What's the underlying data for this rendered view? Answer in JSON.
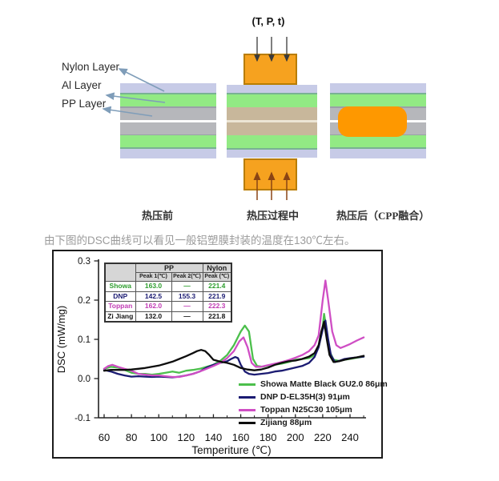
{
  "diagram": {
    "layer_labels": {
      "nylon": "Nylon Layer",
      "al": "Al Layer",
      "pp": "PP Layer"
    },
    "press_annotation": "(T, P, t)",
    "captions": {
      "before": "热压前",
      "during": "热压过程中",
      "after": "热压后（CPP融合）"
    },
    "colors": {
      "nylon_layer": "#c7cbe7",
      "al_layer": "#92ea84",
      "pp_layer": "#b6b7bb",
      "melted_pp": "#c8b79b",
      "press_block": "#f6a21f",
      "press_block_border": "#b97d00",
      "cpp_fusion_blob": "#fe9800",
      "label_arrow": "#7f9db9"
    }
  },
  "lead_text": "由下图的DSC曲线可以看见一般铝塑膜封装的温度在130℃左右。",
  "chart_data": {
    "type": "line",
    "title": "",
    "xlabel": "Temperiture (℃)",
    "ylabel": "DSC (mW/mg)",
    "xlim": [
      56,
      252
    ],
    "ylim": [
      -0.1,
      0.3
    ],
    "xticks": [
      60,
      80,
      100,
      120,
      140,
      160,
      180,
      200,
      220,
      240
    ],
    "yticks": [
      -0.1,
      0.0,
      0.1,
      0.2,
      0.3
    ],
    "grid": false,
    "legend_position": "lower right",
    "series": [
      {
        "name": "Showa Matte Black GU2.0 86μm",
        "color": "#4cbf4c",
        "points": [
          [
            60,
            0.025
          ],
          [
            65,
            0.03
          ],
          [
            70,
            0.028
          ],
          [
            75,
            0.022
          ],
          [
            80,
            0.015
          ],
          [
            85,
            0.012
          ],
          [
            90,
            0.012
          ],
          [
            95,
            0.01
          ],
          [
            100,
            0.012
          ],
          [
            105,
            0.015
          ],
          [
            110,
            0.018
          ],
          [
            115,
            0.015
          ],
          [
            120,
            0.02
          ],
          [
            125,
            0.022
          ],
          [
            130,
            0.025
          ],
          [
            135,
            0.03
          ],
          [
            140,
            0.035
          ],
          [
            145,
            0.045
          ],
          [
            150,
            0.06
          ],
          [
            155,
            0.085
          ],
          [
            160,
            0.12
          ],
          [
            163,
            0.135
          ],
          [
            166,
            0.12
          ],
          [
            169,
            0.05
          ],
          [
            172,
            0.032
          ],
          [
            176,
            0.03
          ],
          [
            180,
            0.033
          ],
          [
            185,
            0.035
          ],
          [
            190,
            0.038
          ],
          [
            195,
            0.042
          ],
          [
            200,
            0.048
          ],
          [
            205,
            0.05
          ],
          [
            210,
            0.052
          ],
          [
            214,
            0.06
          ],
          [
            217,
            0.08
          ],
          [
            220,
            0.13
          ],
          [
            221,
            0.165
          ],
          [
            223,
            0.12
          ],
          [
            225,
            0.07
          ],
          [
            228,
            0.048
          ],
          [
            232,
            0.045
          ],
          [
            236,
            0.048
          ],
          [
            240,
            0.05
          ],
          [
            245,
            0.053
          ],
          [
            250,
            0.056
          ]
        ]
      },
      {
        "name": "DNP D-EL35H(3) 91μm",
        "color": "#1b1b72",
        "points": [
          [
            60,
            0.022
          ],
          [
            65,
            0.018
          ],
          [
            70,
            0.012
          ],
          [
            75,
            0.008
          ],
          [
            80,
            0.005
          ],
          [
            85,
            0.006
          ],
          [
            90,
            0.005
          ],
          [
            95,
            0.004
          ],
          [
            100,
            0.005
          ],
          [
            105,
            0.004
          ],
          [
            110,
            0.003
          ],
          [
            115,
            0.005
          ],
          [
            120,
            0.008
          ],
          [
            125,
            0.012
          ],
          [
            130,
            0.018
          ],
          [
            135,
            0.028
          ],
          [
            140,
            0.035
          ],
          [
            145,
            0.04
          ],
          [
            150,
            0.044
          ],
          [
            153,
            0.05
          ],
          [
            156,
            0.055
          ],
          [
            158,
            0.052
          ],
          [
            160,
            0.035
          ],
          [
            163,
            0.018
          ],
          [
            166,
            0.012
          ],
          [
            170,
            0.01
          ],
          [
            175,
            0.012
          ],
          [
            180,
            0.014
          ],
          [
            185,
            0.018
          ],
          [
            190,
            0.02
          ],
          [
            195,
            0.024
          ],
          [
            200,
            0.028
          ],
          [
            205,
            0.032
          ],
          [
            210,
            0.04
          ],
          [
            214,
            0.055
          ],
          [
            217,
            0.08
          ],
          [
            220,
            0.125
          ],
          [
            222,
            0.148
          ],
          [
            224,
            0.1
          ],
          [
            226,
            0.06
          ],
          [
            229,
            0.042
          ],
          [
            232,
            0.045
          ],
          [
            236,
            0.05
          ],
          [
            240,
            0.052
          ],
          [
            245,
            0.054
          ],
          [
            250,
            0.056
          ]
        ]
      },
      {
        "name": "Toppan N25C30 105μm",
        "color": "#cf4ec4",
        "points": [
          [
            60,
            0.025
          ],
          [
            63,
            0.032
          ],
          [
            66,
            0.035
          ],
          [
            70,
            0.03
          ],
          [
            75,
            0.025
          ],
          [
            80,
            0.02
          ],
          [
            85,
            0.012
          ],
          [
            90,
            0.01
          ],
          [
            95,
            0.008
          ],
          [
            100,
            0.008
          ],
          [
            105,
            0.006
          ],
          [
            110,
            0.004
          ],
          [
            115,
            0.004
          ],
          [
            120,
            0.008
          ],
          [
            125,
            0.012
          ],
          [
            130,
            0.018
          ],
          [
            135,
            0.025
          ],
          [
            140,
            0.032
          ],
          [
            145,
            0.04
          ],
          [
            150,
            0.052
          ],
          [
            155,
            0.07
          ],
          [
            159,
            0.095
          ],
          [
            162,
            0.105
          ],
          [
            165,
            0.08
          ],
          [
            168,
            0.04
          ],
          [
            171,
            0.03
          ],
          [
            175,
            0.03
          ],
          [
            180,
            0.034
          ],
          [
            185,
            0.038
          ],
          [
            190,
            0.042
          ],
          [
            195,
            0.047
          ],
          [
            200,
            0.053
          ],
          [
            205,
            0.06
          ],
          [
            210,
            0.07
          ],
          [
            214,
            0.085
          ],
          [
            217,
            0.11
          ],
          [
            220,
            0.2
          ],
          [
            222,
            0.25
          ],
          [
            224,
            0.2
          ],
          [
            227,
            0.12
          ],
          [
            230,
            0.085
          ],
          [
            233,
            0.078
          ],
          [
            236,
            0.082
          ],
          [
            240,
            0.088
          ],
          [
            245,
            0.097
          ],
          [
            250,
            0.105
          ]
        ]
      },
      {
        "name": "Zijiang 88μm",
        "color": "#0d0d0d",
        "points": [
          [
            60,
            0.02
          ],
          [
            65,
            0.022
          ],
          [
            70,
            0.022
          ],
          [
            75,
            0.022
          ],
          [
            80,
            0.023
          ],
          [
            85,
            0.025
          ],
          [
            90,
            0.027
          ],
          [
            95,
            0.03
          ],
          [
            100,
            0.033
          ],
          [
            105,
            0.038
          ],
          [
            110,
            0.043
          ],
          [
            115,
            0.05
          ],
          [
            120,
            0.057
          ],
          [
            125,
            0.065
          ],
          [
            128,
            0.07
          ],
          [
            131,
            0.073
          ],
          [
            134,
            0.07
          ],
          [
            137,
            0.06
          ],
          [
            140,
            0.048
          ],
          [
            145,
            0.043
          ],
          [
            150,
            0.04
          ],
          [
            155,
            0.035
          ],
          [
            160,
            0.027
          ],
          [
            165,
            0.023
          ],
          [
            170,
            0.021
          ],
          [
            175,
            0.023
          ],
          [
            180,
            0.028
          ],
          [
            185,
            0.035
          ],
          [
            190,
            0.04
          ],
          [
            195,
            0.044
          ],
          [
            200,
            0.046
          ],
          [
            205,
            0.05
          ],
          [
            210,
            0.056
          ],
          [
            214,
            0.065
          ],
          [
            217,
            0.085
          ],
          [
            219,
            0.12
          ],
          [
            221,
            0.145
          ],
          [
            223,
            0.1
          ],
          [
            225,
            0.06
          ],
          [
            228,
            0.042
          ],
          [
            232,
            0.044
          ],
          [
            236,
            0.048
          ],
          [
            240,
            0.051
          ],
          [
            245,
            0.054
          ],
          [
            250,
            0.058
          ]
        ]
      }
    ],
    "inset_table": {
      "col_groups": [
        {
          "label": "PP",
          "span": 2
        },
        {
          "label": "Nylon",
          "span": 1
        }
      ],
      "sub_headers": [
        "Peak 1(℃)",
        "Peak 2(℃)",
        "Peak (℃)"
      ],
      "rows": [
        {
          "label": "Showa",
          "color": "#2e9e2e",
          "values": [
            "163.0",
            "—",
            "221.4"
          ]
        },
        {
          "label": "DNP",
          "color": "#1b1b72",
          "values": [
            "142.5",
            "155.3",
            "221.9"
          ]
        },
        {
          "label": "Toppan",
          "color": "#c13bb4",
          "values": [
            "162.0",
            "—",
            "222.3"
          ]
        },
        {
          "label": "Zi Jiang",
          "color": "#111111",
          "values": [
            "132.0",
            "—",
            "221.8"
          ]
        }
      ]
    }
  }
}
